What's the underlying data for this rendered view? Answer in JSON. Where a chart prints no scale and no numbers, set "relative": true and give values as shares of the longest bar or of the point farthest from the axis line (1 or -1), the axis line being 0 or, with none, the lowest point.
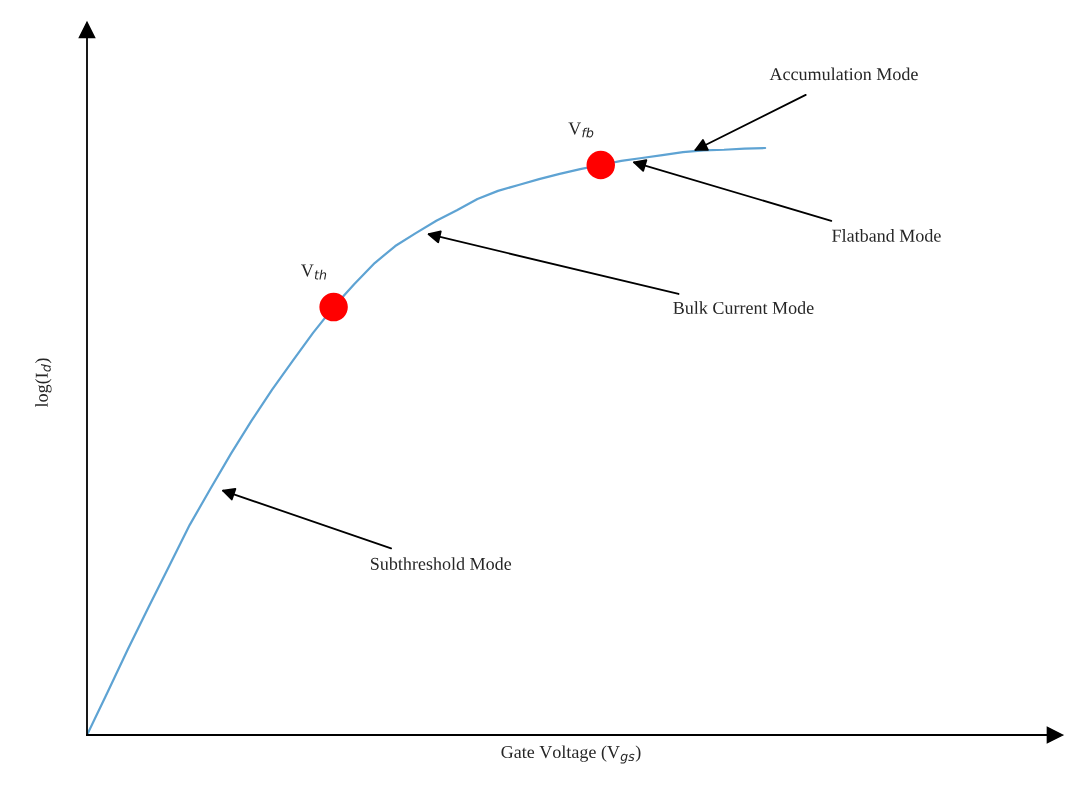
{
  "chart_data": {
    "type": "line",
    "relative": true,
    "xlabel": "Gate Voltage (V$_{gs}$)",
    "ylabel": "log(I$_{d}$)",
    "categories": [
      null,
      null,
      null,
      null,
      null,
      null,
      null,
      null,
      null,
      null,
      null,
      null,
      null,
      null,
      null,
      null,
      null,
      null,
      null,
      null,
      null,
      null,
      null,
      null,
      null,
      null,
      null,
      null,
      null,
      null,
      null,
      null,
      null,
      null
    ],
    "series": [
      {
        "color": "#5ea3d3",
        "values": [
          0,
          0.073,
          0.147,
          0.218,
          0.288,
          0.358,
          0.419,
          0.479,
          0.535,
          0.588,
          0.637,
          0.685,
          0.729,
          0.768,
          0.804,
          0.833,
          0.855,
          0.876,
          0.894,
          0.913,
          0.927,
          0.937,
          0.947,
          0.956,
          0.964,
          0.971,
          0.978,
          0.983,
          0.988,
          0.993,
          0.996,
          0.997,
          0.999,
          1
        ]
      }
    ],
    "annotations": [
      "V$_{th}$",
      "V$_{fb}$",
      "Accumulation Mode",
      "Flatband Mode",
      "Bulk Current Mode",
      "Subthreshold Mode"
    ]
  }
}
